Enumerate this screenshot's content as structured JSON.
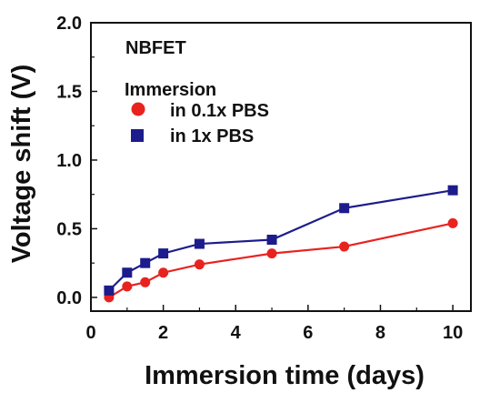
{
  "chart_data": {
    "type": "line",
    "title": "",
    "xlabel": "Immersion time (days)",
    "ylabel": "Voltage shift (V)",
    "xlim": [
      0,
      10.5
    ],
    "ylim": [
      -0.1,
      2.0
    ],
    "x_ticks": [
      "0",
      "2",
      "4",
      "6",
      "8",
      "10"
    ],
    "y_ticks": [
      "0.0",
      "0.5",
      "1.0",
      "1.5",
      "2.0"
    ],
    "grid": false,
    "annotation": "NBFET",
    "legend": {
      "title": "Immersion",
      "placement": "upper-left"
    },
    "series": [
      {
        "name": "in 0.1x PBS",
        "color": "#e8231f",
        "marker": "circle",
        "x": [
          0.5,
          1,
          1.5,
          2,
          3,
          5,
          7,
          10
        ],
        "y": [
          0.0,
          0.08,
          0.11,
          0.18,
          0.24,
          0.32,
          0.37,
          0.54
        ]
      },
      {
        "name": "in 1x PBS",
        "color": "#1c1c8c",
        "marker": "square",
        "x": [
          0.5,
          1,
          1.5,
          2,
          3,
          5,
          7,
          10
        ],
        "y": [
          0.05,
          0.18,
          0.25,
          0.32,
          0.39,
          0.42,
          0.65,
          0.78
        ]
      }
    ]
  }
}
